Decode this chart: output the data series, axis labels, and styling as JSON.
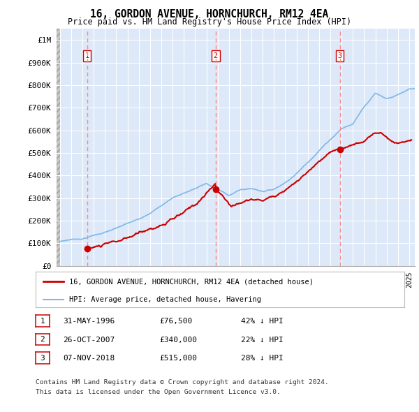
{
  "title": "16, GORDON AVENUE, HORNCHURCH, RM12 4EA",
  "subtitle": "Price paid vs. HM Land Registry's House Price Index (HPI)",
  "xlim_start": 1993.7,
  "xlim_end": 2025.5,
  "ylim": [
    0,
    1050000
  ],
  "yticks": [
    0,
    100000,
    200000,
    300000,
    400000,
    500000,
    600000,
    700000,
    800000,
    900000,
    1000000
  ],
  "ytick_labels": [
    "£0",
    "£100K",
    "£200K",
    "£300K",
    "£400K",
    "£500K",
    "£600K",
    "£700K",
    "£800K",
    "£900K",
    "£1M"
  ],
  "sales": [
    {
      "date_num": 1996.41,
      "price": 76500,
      "label": "1"
    },
    {
      "date_num": 2007.82,
      "price": 340000,
      "label": "2"
    },
    {
      "date_num": 2018.85,
      "price": 515000,
      "label": "3"
    }
  ],
  "legend_line1": "16, GORDON AVENUE, HORNCHURCH, RM12 4EA (detached house)",
  "legend_line2": "HPI: Average price, detached house, Havering",
  "red_color": "#cc0000",
  "blue_color": "#7fb8e8",
  "table_rows": [
    {
      "num": "1",
      "date": "31-MAY-1996",
      "price": "£76,500",
      "hpi": "42% ↓ HPI"
    },
    {
      "num": "2",
      "date": "26-OCT-2007",
      "price": "£340,000",
      "hpi": "22% ↓ HPI"
    },
    {
      "num": "3",
      "date": "07-NOV-2018",
      "price": "£515,000",
      "hpi": "28% ↓ HPI"
    }
  ],
  "footnote1": "Contains HM Land Registry data © Crown copyright and database right 2024.",
  "footnote2": "This data is licensed under the Open Government Licence v3.0.",
  "plot_bg_color": "#dde8f8",
  "grid_color": "#ffffff",
  "vline_color": "#ff8888",
  "hatch_bg": "#c8c8c8"
}
